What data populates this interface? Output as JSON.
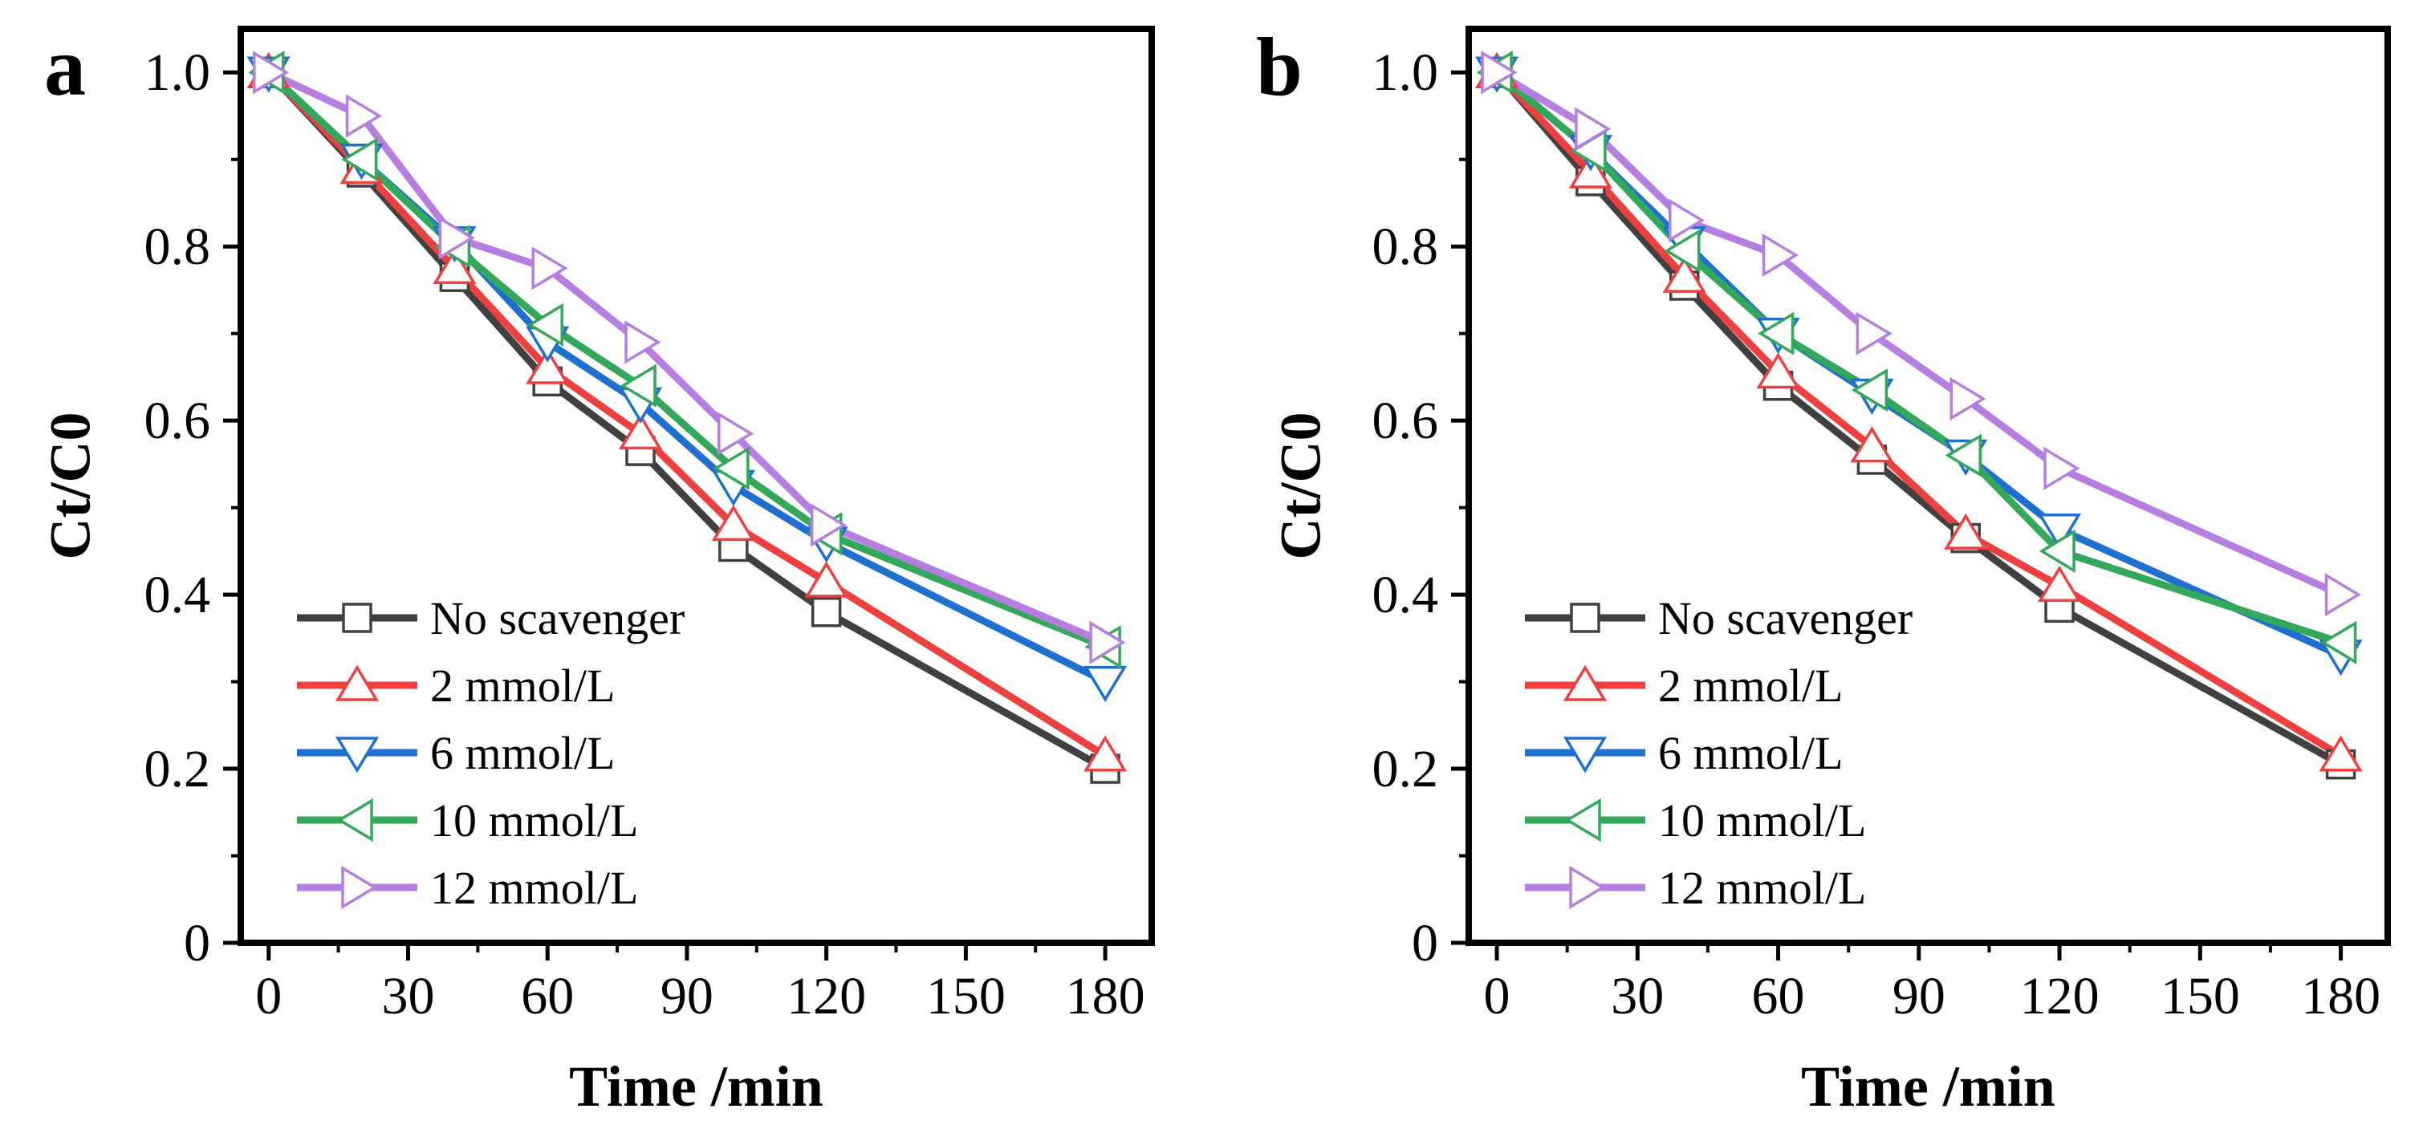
{
  "chart_data": [
    {
      "panel": "a",
      "type": "line",
      "xlabel": "Time /min",
      "ylabel": "Ct/C0",
      "xlim": [
        -6,
        190
      ],
      "ylim": [
        0,
        1.05
      ],
      "x_ticks": [
        0,
        30,
        60,
        90,
        120,
        150,
        180
      ],
      "x_tick_labels": [
        "0",
        "30",
        "60",
        "90",
        "120",
        "150",
        "180"
      ],
      "y_ticks": [
        0,
        0.2,
        0.4,
        0.6,
        0.8,
        1.0
      ],
      "y_tick_labels": [
        "0",
        "0.2",
        "0.4",
        "0.6",
        "0.8",
        "1.0"
      ],
      "legend_position": "bottom-left",
      "grid": false,
      "series": [
        {
          "name": "No scavenger",
          "color": "#404040",
          "marker": "square",
          "x": [
            0,
            20,
            40,
            60,
            80,
            100,
            120,
            180
          ],
          "values": [
            1.0,
            0.885,
            0.765,
            0.645,
            0.565,
            0.455,
            0.38,
            0.2
          ]
        },
        {
          "name": "2 mmol/L",
          "color": "#ef4040",
          "marker": "triangle-up",
          "x": [
            0,
            20,
            40,
            60,
            80,
            100,
            120,
            180
          ],
          "values": [
            1.0,
            0.89,
            0.775,
            0.66,
            0.585,
            0.48,
            0.415,
            0.215
          ]
        },
        {
          "name": "6 mmol/L",
          "color": "#1e6fd0",
          "marker": "triangle-down",
          "x": [
            0,
            20,
            40,
            60,
            80,
            100,
            120,
            180
          ],
          "values": [
            1.0,
            0.9,
            0.805,
            0.69,
            0.62,
            0.525,
            0.46,
            0.3
          ]
        },
        {
          "name": "10 mmol/L",
          "color": "#33a85a",
          "marker": "triangle-left",
          "x": [
            0,
            20,
            40,
            60,
            80,
            100,
            120,
            180
          ],
          "values": [
            1.0,
            0.9,
            0.8,
            0.71,
            0.64,
            0.545,
            0.47,
            0.34
          ]
        },
        {
          "name": "12 mmol/L",
          "color": "#b57ee0",
          "marker": "triangle-right",
          "x": [
            0,
            20,
            40,
            60,
            80,
            100,
            120,
            180
          ],
          "values": [
            1.0,
            0.95,
            0.81,
            0.775,
            0.69,
            0.585,
            0.48,
            0.345
          ]
        }
      ]
    },
    {
      "panel": "b",
      "type": "line",
      "xlabel": "Time /min",
      "ylabel": "Ct/C0",
      "xlim": [
        -6,
        190
      ],
      "ylim": [
        0,
        1.05
      ],
      "x_ticks": [
        0,
        30,
        60,
        90,
        120,
        150,
        180
      ],
      "x_tick_labels": [
        "0",
        "30",
        "60",
        "90",
        "120",
        "150",
        "180"
      ],
      "y_ticks": [
        0,
        0.2,
        0.4,
        0.6,
        0.8,
        1.0
      ],
      "y_tick_labels": [
        "0",
        "0.2",
        "0.4",
        "0.6",
        "0.8",
        "1.0"
      ],
      "legend_position": "bottom-left",
      "grid": false,
      "series": [
        {
          "name": "No scavenger",
          "color": "#404040",
          "marker": "square",
          "x": [
            0,
            20,
            40,
            60,
            80,
            100,
            120,
            180
          ],
          "values": [
            1.0,
            0.875,
            0.755,
            0.64,
            0.555,
            0.465,
            0.385,
            0.205
          ]
        },
        {
          "name": "2 mmol/L",
          "color": "#ef4040",
          "marker": "triangle-up",
          "x": [
            0,
            20,
            40,
            60,
            80,
            100,
            120,
            180
          ],
          "values": [
            1.0,
            0.885,
            0.765,
            0.655,
            0.57,
            0.47,
            0.41,
            0.215
          ]
        },
        {
          "name": "6 mmol/L",
          "color": "#1e6fd0",
          "marker": "triangle-down",
          "x": [
            0,
            20,
            40,
            60,
            80,
            100,
            120,
            180
          ],
          "values": [
            1.0,
            0.91,
            0.805,
            0.7,
            0.63,
            0.56,
            0.475,
            0.33
          ]
        },
        {
          "name": "10 mmol/L",
          "color": "#33a85a",
          "marker": "triangle-left",
          "x": [
            0,
            20,
            40,
            60,
            80,
            100,
            120,
            180
          ],
          "values": [
            1.0,
            0.91,
            0.795,
            0.7,
            0.635,
            0.56,
            0.45,
            0.345
          ]
        },
        {
          "name": "12 mmol/L",
          "color": "#b57ee0",
          "marker": "triangle-right",
          "x": [
            0,
            20,
            40,
            60,
            80,
            100,
            120,
            180
          ],
          "values": [
            1.0,
            0.935,
            0.83,
            0.79,
            0.7,
            0.625,
            0.545,
            0.4
          ]
        }
      ]
    }
  ]
}
